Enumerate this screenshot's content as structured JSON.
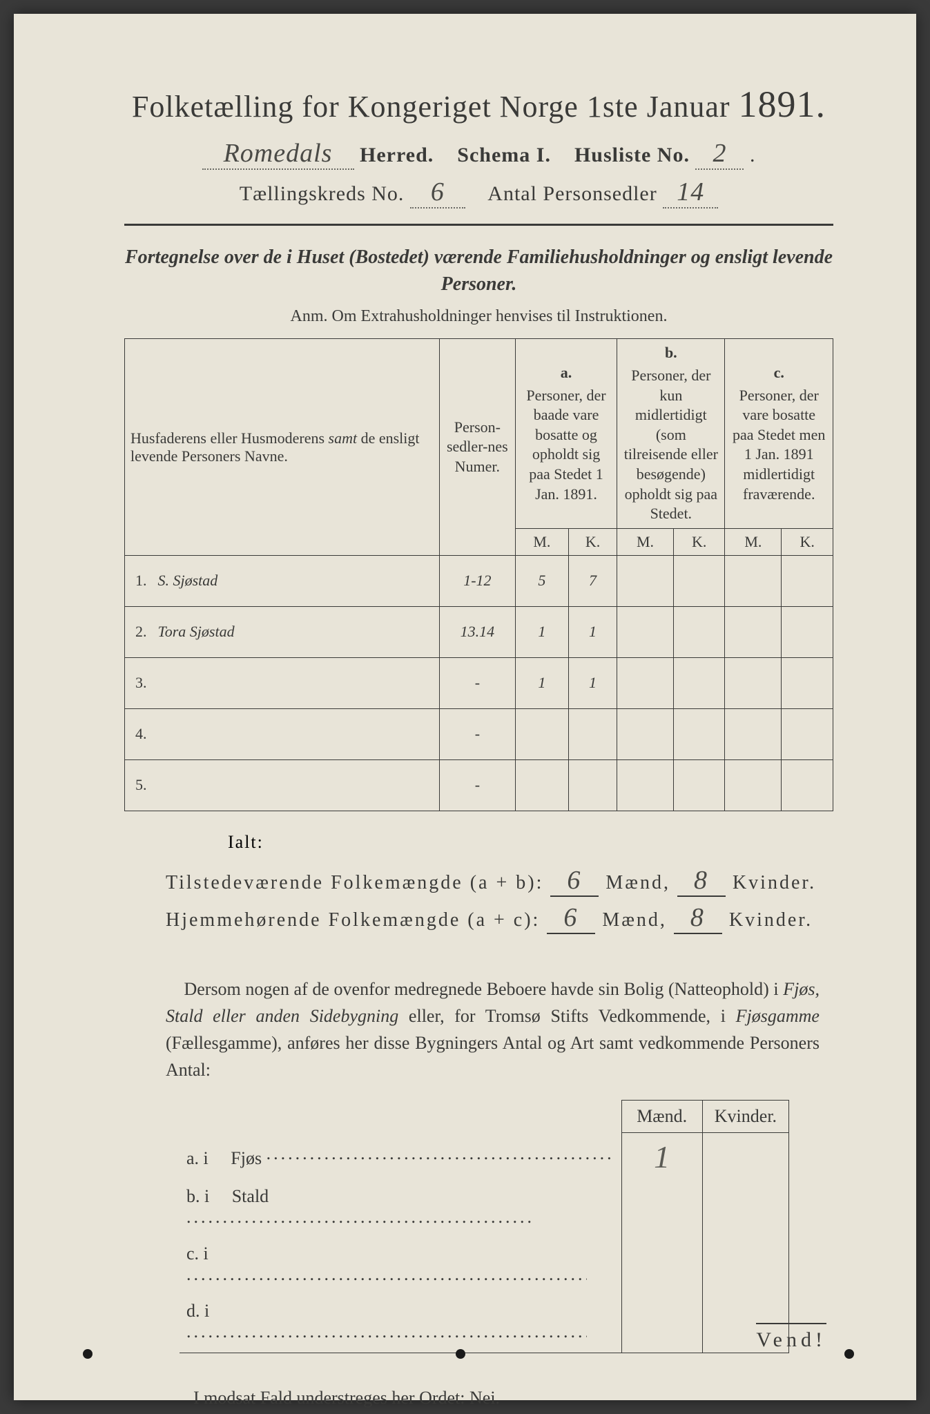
{
  "colors": {
    "page_bg": "#e8e4d8",
    "ink": "#3a3a38",
    "handwriting": "#5a5a54",
    "faint_pencil": "#a8a69a",
    "outer_bg": "#3a3a3a"
  },
  "title": {
    "main": "Folketælling for Kongeriget Norge 1ste Januar",
    "year": "1891."
  },
  "header_line1": {
    "herred_value": "Romedals",
    "herred_label": "Herred.",
    "schema_label": "Schema I.",
    "husliste_label": "Husliste No.",
    "husliste_value": "2"
  },
  "header_line2": {
    "kreds_label": "Tællingskreds No.",
    "kreds_value": "6",
    "antal_label": "Antal Personsedler",
    "antal_value": "14"
  },
  "fortegnelse": "Fortegnelse over de i Huset (Bostedet) værende Familiehusholdninger og ensligt levende Personer.",
  "anm": "Anm.   Om Extrahusholdninger henvises til Instruktionen.",
  "table": {
    "head_names": "Husfaderens eller Husmoderens samt de ensligt levende Personers Navne.",
    "head_numer": "Person-sedler-nes Numer.",
    "col_a": {
      "tag": "a.",
      "text": "Personer, der baade vare bosatte og opholdt sig paa Stedet 1 Jan. 1891."
    },
    "col_b": {
      "tag": "b.",
      "text": "Personer, der kun midlertidigt (som tilreisende eller besøgende) opholdt sig paa Stedet."
    },
    "col_c": {
      "tag": "c.",
      "text": "Personer, der vare bosatte paa Stedet men 1 Jan. 1891 midlertidigt fraværende."
    },
    "mk_m": "M.",
    "mk_k": "K.",
    "rows": [
      {
        "n": "1.",
        "name": "S. Sjøstad",
        "numer": "1-12",
        "a_m": "5",
        "a_k": "7",
        "b_m": "",
        "b_k": "",
        "c_m": "",
        "c_k": ""
      },
      {
        "n": "2.",
        "name": "Tora Sjøstad",
        "numer": "13.14",
        "a_m": "1",
        "a_k": "1",
        "b_m": "",
        "b_k": "",
        "c_m": "",
        "c_k": ""
      },
      {
        "n": "3.",
        "name": "",
        "numer": "-",
        "a_m": "1",
        "a_k": "1",
        "b_m": "",
        "b_k": "",
        "c_m": "",
        "c_k": "",
        "faint": true
      },
      {
        "n": "4.",
        "name": "",
        "numer": "-",
        "a_m": "",
        "a_k": "",
        "b_m": "",
        "b_k": "",
        "c_m": "",
        "c_k": ""
      },
      {
        "n": "5.",
        "name": "",
        "numer": "-",
        "a_m": "",
        "a_k": "",
        "b_m": "",
        "b_k": "",
        "c_m": "",
        "c_k": ""
      }
    ]
  },
  "ialt_label": "Ialt:",
  "totals": {
    "line1_label": "Tilstedeværende Folkemængde (a + b):",
    "line2_label": "Hjemmehørende Folkemængde (a + c):",
    "maend_label": "Mænd,",
    "kvinder_label": "Kvinder.",
    "t_m": "6",
    "t_k": "8",
    "h_m": "6",
    "h_k": "8"
  },
  "paragraph_text": "Dersom nogen af de ovenfor medregnede Beboere havde sin Bolig (Natteophold) i Fjøs, Stald eller anden Sidebygning eller, for Tromsø Stifts Vedkommende, i Fjøsgamme (Fællesgamme), anføres her disse Bygningers Antal og Art samt vedkommende Personers Antal:",
  "side_table": {
    "head_m": "Mænd.",
    "head_k": "Kvinder.",
    "rows": [
      {
        "key": "a.  i",
        "label": "Fjøs",
        "m": "1",
        "k": ""
      },
      {
        "key": "b.  i",
        "label": "Stald",
        "m": "",
        "k": ""
      },
      {
        "key": "c.  i",
        "label": "",
        "m": "",
        "k": ""
      },
      {
        "key": "d.  i",
        "label": "",
        "m": "",
        "k": ""
      }
    ]
  },
  "modsat": "I modsat Fald understreges her Ordet: Nei.",
  "vend": "Vend!"
}
